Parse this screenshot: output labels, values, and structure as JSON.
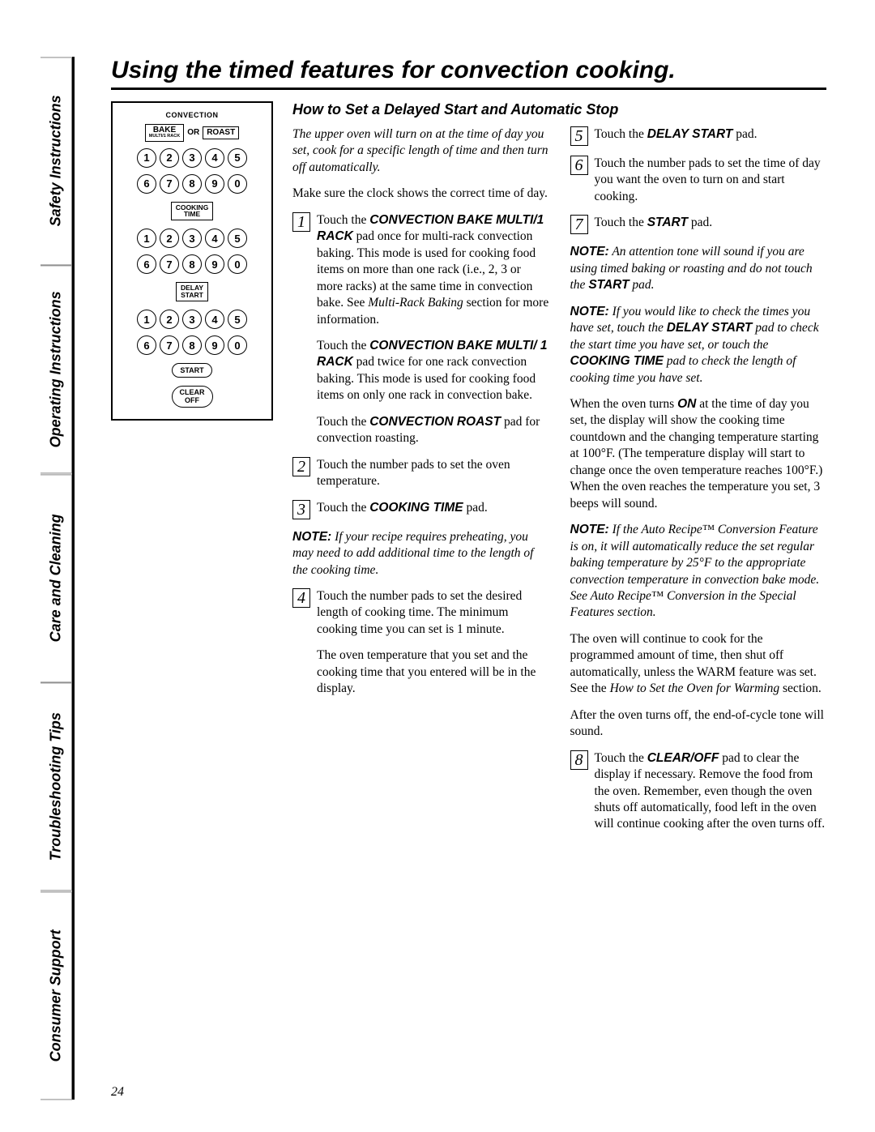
{
  "tabs": [
    "Safety Instructions",
    "Operating Instructions",
    "Care and Cleaning",
    "Troubleshooting Tips",
    "Consumer Support"
  ],
  "title": "Using the timed features for convection cooking.",
  "section_title": "How to Set a Delayed Start and Automatic Stop",
  "page_number": "24",
  "panel": {
    "conv_label": "CONVECTION",
    "bake_label": "BAKE",
    "bake_sub": "MULTI/1 RACK",
    "or": "OR",
    "roast": "ROAST",
    "cooking_time": "COOKING\nTIME",
    "delay_start": "DELAY\nSTART",
    "start": "START",
    "clear_off": "CLEAR\nOFF",
    "row1": [
      "1",
      "2",
      "3",
      "4",
      "5"
    ],
    "row2": [
      "6",
      "7",
      "8",
      "9",
      "0"
    ]
  },
  "left": {
    "intro_ital": "The upper oven will turn on at the time of day you set, cook for a specific length of time and then turn off automatically.",
    "clock": "Make sure the clock shows the correct time of day.",
    "s1a_pre": "Touch the ",
    "s1a_b": "CONVECTION BAKE MULTI/1 RACK",
    "s1a_post": " pad once for multi-rack convection baking. This mode is used for cooking food items on more than one rack (i.e., 2, 3 or more racks) at the same time in convection bake. See ",
    "s1a_ital": "Multi-Rack Baking",
    "s1a_tail": " section for more information.",
    "s1b_pre": "Touch the ",
    "s1b_b": "CONVECTION BAKE MULTI/ 1 RACK",
    "s1b_post": " pad twice for one rack convection baking. This mode is used for cooking food items on only one rack in convection bake.",
    "s1c_pre": "Touch the ",
    "s1c_b": "CONVECTION ROAST",
    "s1c_post": " pad for convection roasting.",
    "s2": "Touch the number pads to set the oven temperature.",
    "s3_pre": "Touch the ",
    "s3_b": "COOKING TIME",
    "s3_post": " pad.",
    "note1_lead": "NOTE:",
    "note1": " If your recipe requires preheating, you may need to add additional time to the length of the cooking time.",
    "s4": "Touch the number pads to set the desired length of cooking time. The minimum cooking time you can set is 1 minute.",
    "s4b": "The oven temperature that you set and the cooking time that you entered will be in the display."
  },
  "right": {
    "s5_pre": "Touch the ",
    "s5_b": "DELAY START",
    "s5_post": " pad.",
    "s6": "Touch the number pads to set the time of day you want the oven to turn on and start cooking.",
    "s7_pre": "Touch the ",
    "s7_b": "START",
    "s7_post": " pad.",
    "note2_lead": "NOTE:",
    "note2_a": " An attention tone will sound if you are using timed baking or roasting and do not touch the ",
    "note2_b": "START",
    "note2_c": " pad.",
    "note3_lead": "NOTE:",
    "note3_a": " If you would like to check the times you have set, touch the ",
    "note3_b1": "DELAY START",
    "note3_b": " pad to check the start time you have set, or touch the ",
    "note3_b2": "COOKING TIME",
    "note3_c": " pad to check the length of cooking time you have set.",
    "p_on_a": "When the oven turns ",
    "p_on_b": "ON",
    "p_on_c": " at the time of day you set, the display will show the cooking time countdown and the changing temperature starting at 100°F. (The temperature display will start to change once the oven temperature reaches 100°F.) When the oven reaches the temperature you set, 3 beeps will sound.",
    "note4_lead": "NOTE:",
    "note4": " If the Auto Recipe™ Conversion Feature is on, it will automatically reduce the set regular baking temperature by 25°F to the appropriate convection temperature in convection bake mode. See Auto Recipe™ Conversion in the Special Features section.",
    "p_cont_a": "The oven will continue to cook for the programmed amount of time, then shut off automatically, unless the WARM feature was set. See the ",
    "p_cont_i": "How to Set the Oven for Warming",
    "p_cont_b": " section.",
    "p_after": "After the oven turns off, the end-of-cycle tone will sound.",
    "s8_pre": "Touch the ",
    "s8_b": "CLEAR/OFF",
    "s8_post": " pad to clear the display if necessary. Remove the food from the oven. Remember, even though the oven shuts off automatically, food left in the oven will continue cooking after the oven turns off."
  }
}
